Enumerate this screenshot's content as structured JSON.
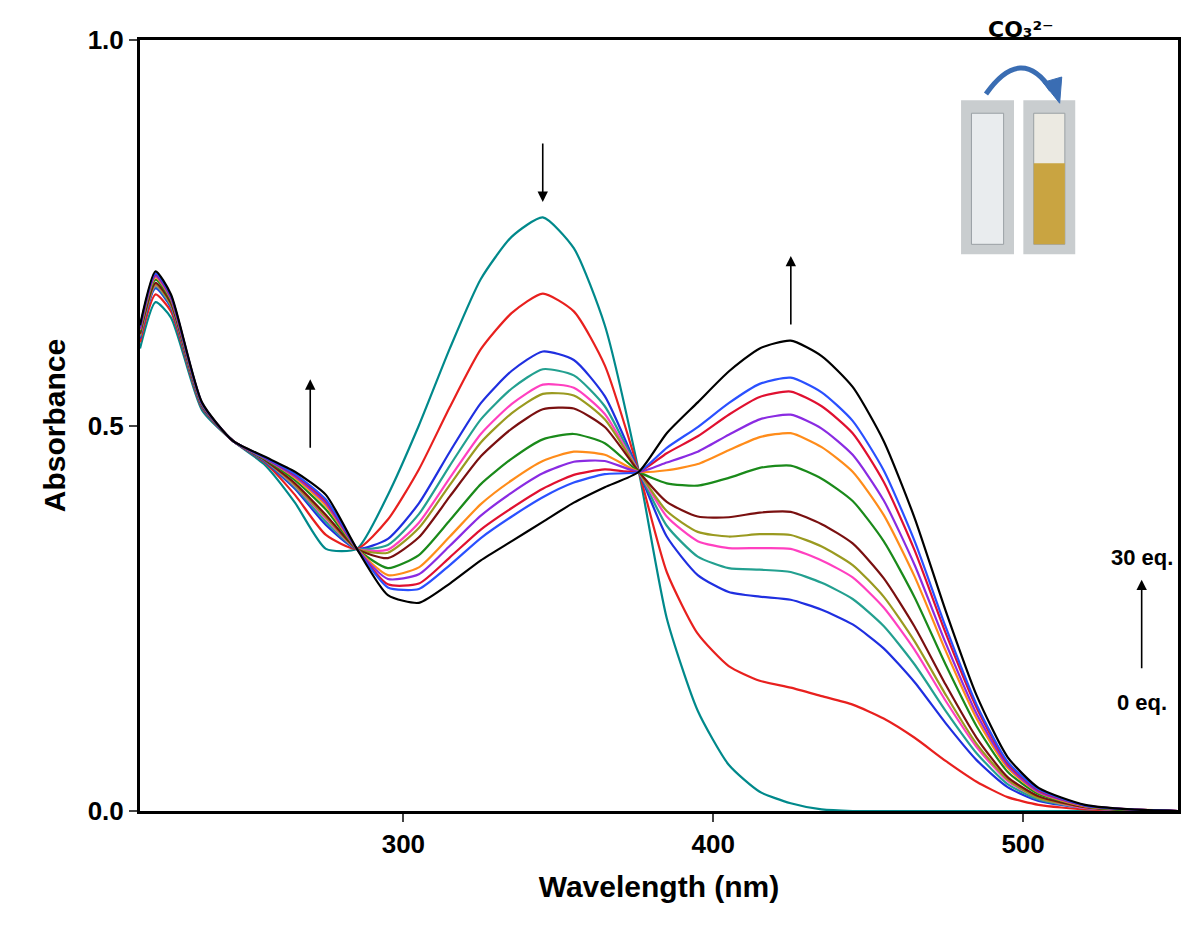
{
  "chart_data": {
    "type": "line",
    "x_label": "Wavelength (nm)",
    "y_label": "Absorbance",
    "x": [
      215,
      220,
      225,
      235,
      245,
      255,
      265,
      275,
      285,
      295,
      305,
      315,
      325,
      335,
      345,
      355,
      365,
      376,
      385,
      395,
      405,
      415,
      425,
      435,
      445,
      455,
      465,
      475,
      485,
      495,
      505,
      520,
      535,
      550
    ],
    "series": [
      {
        "color": "#00898b",
        "values": [
          0.6,
          0.66,
          0.64,
          0.52,
          0.48,
          0.45,
          0.4,
          0.34,
          0.34,
          0.41,
          0.5,
          0.6,
          0.69,
          0.745,
          0.77,
          0.73,
          0.63,
          0.44,
          0.25,
          0.13,
          0.06,
          0.025,
          0.01,
          0.002,
          0,
          0,
          0,
          0,
          0,
          0,
          0,
          0,
          0,
          0
        ]
      },
      {
        "color": "#e8201e",
        "values": [
          0.608,
          0.67,
          0.648,
          0.523,
          0.48,
          0.453,
          0.41,
          0.358,
          0.34,
          0.378,
          0.443,
          0.524,
          0.599,
          0.646,
          0.671,
          0.648,
          0.578,
          0.44,
          0.31,
          0.23,
          0.188,
          0.169,
          0.16,
          0.149,
          0.138,
          0.12,
          0.095,
          0.065,
          0.038,
          0.018,
          0.008,
          0.002,
          0.001,
          0
        ]
      },
      {
        "color": "#1f2fe0",
        "values": [
          0.613,
          0.678,
          0.653,
          0.524,
          0.48,
          0.454,
          0.418,
          0.371,
          0.34,
          0.353,
          0.399,
          0.466,
          0.529,
          0.571,
          0.596,
          0.585,
          0.538,
          0.44,
          0.356,
          0.306,
          0.284,
          0.278,
          0.274,
          0.261,
          0.242,
          0.211,
          0.167,
          0.114,
          0.066,
          0.031,
          0.013,
          0.004,
          0.001,
          0
        ]
      },
      {
        "color": "#23a090",
        "values": [
          0.615,
          0.68,
          0.655,
          0.525,
          0.48,
          0.455,
          0.42,
          0.375,
          0.34,
          0.345,
          0.385,
          0.448,
          0.508,
          0.548,
          0.573,
          0.565,
          0.525,
          0.44,
          0.37,
          0.33,
          0.315,
          0.313,
          0.31,
          0.296,
          0.275,
          0.24,
          0.19,
          0.13,
          0.075,
          0.035,
          0.015,
          0.004,
          0.001,
          0
        ]
      },
      {
        "color": "#ff40c0",
        "values": [
          0.617,
          0.682,
          0.657,
          0.526,
          0.48,
          0.456,
          0.422,
          0.379,
          0.34,
          0.339,
          0.374,
          0.432,
          0.489,
          0.528,
          0.553,
          0.549,
          0.515,
          0.44,
          0.382,
          0.35,
          0.341,
          0.341,
          0.34,
          0.325,
          0.303,
          0.264,
          0.209,
          0.143,
          0.083,
          0.039,
          0.017,
          0.004,
          0.001,
          0
        ]
      },
      {
        "color": "#9a9a20",
        "values": [
          0.617,
          0.683,
          0.657,
          0.526,
          0.48,
          0.456,
          0.423,
          0.381,
          0.34,
          0.335,
          0.367,
          0.423,
          0.478,
          0.516,
          0.541,
          0.539,
          0.508,
          0.44,
          0.389,
          0.362,
          0.356,
          0.359,
          0.358,
          0.343,
          0.319,
          0.278,
          0.22,
          0.151,
          0.087,
          0.041,
          0.017,
          0.005,
          0.001,
          0
        ]
      },
      {
        "color": "#7a1010",
        "values": [
          0.619,
          0.685,
          0.659,
          0.526,
          0.48,
          0.456,
          0.425,
          0.384,
          0.34,
          0.328,
          0.355,
          0.408,
          0.46,
          0.496,
          0.521,
          0.522,
          0.498,
          0.44,
          0.401,
          0.382,
          0.381,
          0.387,
          0.388,
          0.372,
          0.347,
          0.302,
          0.239,
          0.164,
          0.095,
          0.044,
          0.019,
          0.005,
          0.001,
          0
        ]
      },
      {
        "color": "#1a8a1a",
        "values": [
          0.622,
          0.689,
          0.662,
          0.527,
          0.48,
          0.457,
          0.429,
          0.391,
          0.34,
          0.315,
          0.332,
          0.377,
          0.424,
          0.457,
          0.482,
          0.489,
          0.477,
          0.44,
          0.425,
          0.422,
          0.432,
          0.445,
          0.448,
          0.431,
          0.402,
          0.35,
          0.277,
          0.19,
          0.11,
          0.051,
          0.022,
          0.006,
          0.001,
          0
        ]
      },
      {
        "color": "#ff8c1a",
        "values": [
          0.624,
          0.692,
          0.664,
          0.528,
          0.48,
          0.458,
          0.432,
          0.396,
          0.34,
          0.306,
          0.316,
          0.356,
          0.398,
          0.429,
          0.454,
          0.466,
          0.462,
          0.44,
          0.442,
          0.45,
          0.468,
          0.485,
          0.49,
          0.472,
          0.44,
          0.384,
          0.304,
          0.208,
          0.12,
          0.056,
          0.024,
          0.006,
          0.002,
          0
        ]
      },
      {
        "color": "#8a2be2",
        "values": [
          0.625,
          0.694,
          0.665,
          0.528,
          0.48,
          0.458,
          0.434,
          0.399,
          0.34,
          0.301,
          0.307,
          0.344,
          0.383,
          0.413,
          0.438,
          0.453,
          0.454,
          0.44,
          0.452,
          0.466,
          0.488,
          0.508,
          0.514,
          0.496,
          0.462,
          0.403,
          0.319,
          0.218,
          0.126,
          0.059,
          0.025,
          0.007,
          0.002,
          0
        ]
      },
      {
        "color": "#e01030",
        "values": [
          0.627,
          0.696,
          0.667,
          0.529,
          0.48,
          0.459,
          0.436,
          0.402,
          0.34,
          0.294,
          0.295,
          0.329,
          0.365,
          0.393,
          0.418,
          0.436,
          0.443,
          0.44,
          0.464,
          0.486,
          0.514,
          0.537,
          0.544,
          0.525,
          0.49,
          0.427,
          0.338,
          0.231,
          0.134,
          0.062,
          0.027,
          0.007,
          0.002,
          0
        ]
      },
      {
        "color": "#2a50ff",
        "values": [
          0.628,
          0.697,
          0.668,
          0.529,
          0.48,
          0.459,
          0.437,
          0.404,
          0.34,
          0.29,
          0.288,
          0.319,
          0.354,
          0.382,
          0.407,
          0.426,
          0.437,
          0.44,
          0.471,
          0.498,
          0.529,
          0.554,
          0.562,
          0.543,
          0.506,
          0.442,
          0.35,
          0.239,
          0.138,
          0.064,
          0.028,
          0.007,
          0.002,
          0
        ]
      },
      {
        "color": "#000000",
        "values": [
          0.63,
          0.7,
          0.67,
          0.53,
          0.48,
          0.46,
          0.44,
          0.41,
          0.34,
          0.28,
          0.27,
          0.295,
          0.325,
          0.35,
          0.375,
          0.4,
          0.42,
          0.44,
          0.49,
          0.53,
          0.57,
          0.6,
          0.61,
          0.59,
          0.55,
          0.48,
          0.38,
          0.26,
          0.15,
          0.07,
          0.03,
          0.008,
          0.002,
          0
        ]
      }
    ],
    "xlim": [
      215,
      550
    ],
    "xticks": [
      300,
      400,
      500
    ],
    "ylim": [
      0,
      1
    ],
    "yticks": [
      {
        "value": 0,
        "label": "0.0"
      },
      {
        "value": 0.5,
        "label": "0.5"
      },
      {
        "value": 1,
        "label": "1.0"
      }
    ],
    "annotations": [
      "CO₃²⁻",
      "30 eq.",
      "0 eq."
    ],
    "grid": false
  }
}
